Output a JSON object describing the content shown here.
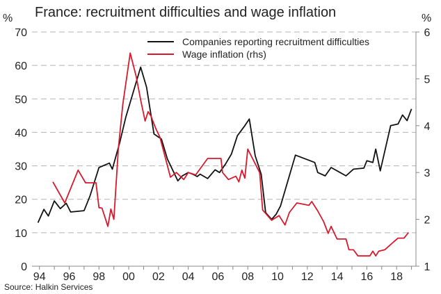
{
  "chart_data": {
    "type": "line",
    "title": "France: recruitment difficulties and wage inflation",
    "left_unit": "%",
    "right_unit": "%",
    "source": "Source: Halkin Services",
    "y_left": {
      "min": 0,
      "max": 70,
      "ticks": [
        0,
        10,
        20,
        30,
        40,
        50,
        60,
        70
      ]
    },
    "y_right": {
      "min": 1,
      "max": 6,
      "ticks": [
        1,
        2,
        3,
        4,
        5,
        6
      ]
    },
    "x_range": [
      1993.5,
      2019.3
    ],
    "x_ticks": [
      {
        "value": 1994,
        "label": "94"
      },
      {
        "value": 1996,
        "label": "96"
      },
      {
        "value": 1998,
        "label": "98"
      },
      {
        "value": 2000,
        "label": "00"
      },
      {
        "value": 2002,
        "label": "02"
      },
      {
        "value": 2004,
        "label": "04"
      },
      {
        "value": 2006,
        "label": "06"
      },
      {
        "value": 2008,
        "label": "08"
      },
      {
        "value": 2010,
        "label": "10"
      },
      {
        "value": 2012,
        "label": "12"
      },
      {
        "value": 2014,
        "label": "14"
      },
      {
        "value": 2016,
        "label": "16"
      },
      {
        "value": 2018,
        "label": "18"
      }
    ],
    "gridlines": "horizontal dashed",
    "legend_position": "top-right",
    "series": [
      {
        "name": "Companies reporting recruitment difficulties",
        "axis": "left",
        "color": "#111111",
        "points": [
          [
            1993.9,
            13
          ],
          [
            1994.3,
            17
          ],
          [
            1994.6,
            15
          ],
          [
            1995.0,
            19.5
          ],
          [
            1995.4,
            17.2
          ],
          [
            1995.8,
            18.8
          ],
          [
            1996.1,
            16.2
          ],
          [
            1997.0,
            16.6
          ],
          [
            1997.4,
            21
          ],
          [
            1998.0,
            29.5
          ],
          [
            1998.7,
            30.8
          ],
          [
            1998.9,
            29
          ],
          [
            1999.4,
            37
          ],
          [
            1999.8,
            44.5
          ],
          [
            2000.3,
            52
          ],
          [
            2000.8,
            59.5
          ],
          [
            2001.2,
            53.5
          ],
          [
            2001.7,
            39.5
          ],
          [
            2002.2,
            38
          ],
          [
            2002.6,
            32
          ],
          [
            2003.3,
            25.5
          ],
          [
            2003.6,
            27
          ],
          [
            2004.0,
            28
          ],
          [
            2004.3,
            27.5
          ],
          [
            2004.6,
            26.8
          ],
          [
            2004.8,
            27.5
          ],
          [
            2005.3,
            26.2
          ],
          [
            2005.8,
            28.8
          ],
          [
            2006.1,
            28
          ],
          [
            2006.5,
            30.5
          ],
          [
            2006.9,
            33.5
          ],
          [
            2007.3,
            39
          ],
          [
            2007.8,
            42
          ],
          [
            2008.1,
            44
          ],
          [
            2008.5,
            33
          ],
          [
            2008.9,
            27.5
          ],
          [
            2009.2,
            16
          ],
          [
            2009.6,
            14
          ],
          [
            2009.9,
            15.5
          ],
          [
            2010.2,
            18
          ],
          [
            2011.2,
            33.2
          ],
          [
            2012.2,
            31.5
          ],
          [
            2012.5,
            31
          ],
          [
            2012.7,
            28
          ],
          [
            2013.2,
            27
          ],
          [
            2013.6,
            29.5
          ],
          [
            2014.2,
            28
          ],
          [
            2014.6,
            27
          ],
          [
            2015.1,
            29
          ],
          [
            2015.8,
            29.3
          ],
          [
            2016.0,
            31.5
          ],
          [
            2016.4,
            31
          ],
          [
            2016.6,
            35
          ],
          [
            2016.9,
            28.5
          ],
          [
            2017.6,
            42
          ],
          [
            2018.1,
            42.5
          ],
          [
            2018.4,
            45.2
          ],
          [
            2018.7,
            43.5
          ],
          [
            2019.0,
            47
          ]
        ]
      },
      {
        "name": "Wage inflation (rhs)",
        "axis": "right",
        "color": "#d7192d",
        "points": [
          [
            1994.9,
            2.8
          ],
          [
            1995.7,
            2.35
          ],
          [
            1996.6,
            3.05
          ],
          [
            1997.1,
            2.78
          ],
          [
            1997.8,
            2.78
          ],
          [
            1998.0,
            2.25
          ],
          [
            1998.2,
            2.24
          ],
          [
            1998.6,
            1.85
          ],
          [
            1998.8,
            2.22
          ],
          [
            1999.0,
            2.0
          ],
          [
            1999.3,
            3.5
          ],
          [
            1999.6,
            4.45
          ],
          [
            2000.1,
            5.55
          ],
          [
            2000.5,
            5.05
          ],
          [
            2000.8,
            4.55
          ],
          [
            2001.1,
            4.1
          ],
          [
            2001.3,
            4.3
          ],
          [
            2001.5,
            4.2
          ],
          [
            2001.8,
            3.95
          ],
          [
            2002.1,
            3.75
          ],
          [
            2002.8,
            2.9
          ],
          [
            2003.2,
            3.0
          ],
          [
            2003.7,
            2.85
          ],
          [
            2004.0,
            3.0
          ],
          [
            2004.5,
            2.95
          ],
          [
            2005.3,
            3.3
          ],
          [
            2005.8,
            3.3
          ],
          [
            2006.2,
            3.3
          ],
          [
            2006.3,
            3.0
          ],
          [
            2006.7,
            2.85
          ],
          [
            2007.2,
            2.92
          ],
          [
            2007.4,
            2.8
          ],
          [
            2007.6,
            3.05
          ],
          [
            2007.8,
            2.88
          ],
          [
            2008.0,
            3.5
          ],
          [
            2008.8,
            3.0
          ],
          [
            2009.0,
            2.2
          ],
          [
            2009.6,
            1.98
          ],
          [
            2010.1,
            2.08
          ],
          [
            2010.5,
            1.88
          ],
          [
            2010.8,
            2.15
          ],
          [
            2011.3,
            2.35
          ],
          [
            2012.1,
            2.3
          ],
          [
            2012.3,
            2.38
          ],
          [
            2012.7,
            2.18
          ],
          [
            2013.1,
            1.95
          ],
          [
            2013.4,
            1.7
          ],
          [
            2013.6,
            1.85
          ],
          [
            2014.0,
            1.58
          ],
          [
            2014.6,
            1.58
          ],
          [
            2014.8,
            1.35
          ],
          [
            2015.1,
            1.35
          ],
          [
            2015.4,
            1.22
          ],
          [
            2015.9,
            1.22
          ],
          [
            2016.2,
            1.22
          ],
          [
            2016.4,
            1.32
          ],
          [
            2016.6,
            1.22
          ],
          [
            2016.8,
            1.32
          ],
          [
            2017.2,
            1.35
          ],
          [
            2017.8,
            1.52
          ],
          [
            2018.1,
            1.6
          ],
          [
            2018.5,
            1.6
          ],
          [
            2018.8,
            1.72
          ]
        ]
      }
    ]
  }
}
